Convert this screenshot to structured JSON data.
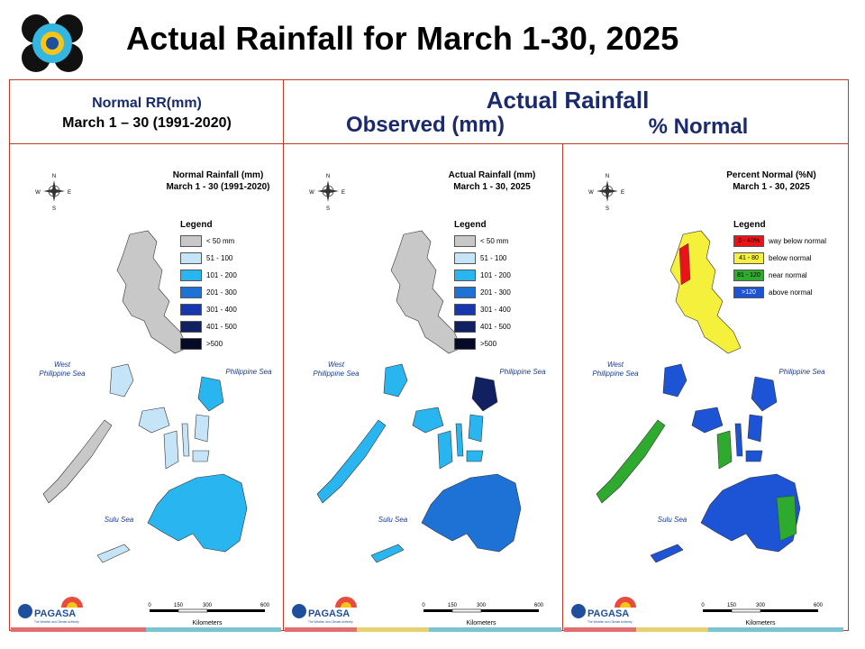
{
  "slide": {
    "title": "Actual Rainfall for March 1-30, 2025"
  },
  "headers": {
    "normal_line1": "Normal RR(mm)",
    "normal_line2": "March 1 – 30 (1991-2020)",
    "actual": "Actual Rainfall",
    "observed": "Observed (mm)",
    "percent": "% Normal"
  },
  "panels": [
    {
      "title_line1": "Normal Rainfall (mm)",
      "title_line2": "March 1 - 30 (1991-2020)",
      "legend_title": "Legend",
      "legend": [
        {
          "label": "< 50 mm",
          "color": "#c8c8c8"
        },
        {
          "label": "51 - 100",
          "color": "#c6e4f7"
        },
        {
          "label": "101 - 200",
          "color": "#29b6f0"
        },
        {
          "label": "201 - 300",
          "color": "#1e72d6"
        },
        {
          "label": "301 - 400",
          "color": "#1637b0"
        },
        {
          "label": "401 - 500",
          "color": "#112060"
        },
        {
          "label": ">500",
          "color": "#060a26"
        }
      ],
      "sea_west": "West\nPhilippine Sea",
      "sea_east": "Philippine Sea",
      "sea_sulu": "Sulu Sea",
      "dominant": "#c6e4f7"
    },
    {
      "title_line1": "Actual Rainfall (mm)",
      "title_line2": "March 1 - 30, 2025",
      "legend_title": "Legend",
      "legend": [
        {
          "label": "< 50 mm",
          "color": "#c8c8c8"
        },
        {
          "label": "51 - 100",
          "color": "#c6e4f7"
        },
        {
          "label": "101 - 200",
          "color": "#29b6f0"
        },
        {
          "label": "201 - 300",
          "color": "#1e72d6"
        },
        {
          "label": "301 - 400",
          "color": "#1637b0"
        },
        {
          "label": "401 - 500",
          "color": "#112060"
        },
        {
          "label": ">500",
          "color": "#060a26"
        }
      ],
      "sea_west": "West\nPhilippine Sea",
      "sea_east": "Philippine Sea",
      "sea_sulu": "Sulu Sea",
      "dominant": "#29b6f0"
    },
    {
      "title_line1": "Percent Normal (%N)",
      "title_line2": "March 1 - 30, 2025",
      "legend_title": "Legend",
      "legend": [
        {
          "swatch": "0 - 40%",
          "label": "way below normal",
          "color": "#e8141a",
          "text": "#000"
        },
        {
          "swatch": "41 - 80",
          "label": "below normal",
          "color": "#f5f03c",
          "text": "#000"
        },
        {
          "swatch": "81 - 120",
          "label": "near normal",
          "color": "#2eaa2e",
          "text": "#000"
        },
        {
          "swatch": ">120",
          "label": "above normal",
          "color": "#1d54d6",
          "text": "#fff"
        }
      ],
      "sea_west": "West\nPhilippine Sea",
      "sea_east": "Philippine Sea",
      "sea_sulu": "Sulu Sea",
      "dominant": "#1d54d6"
    }
  ],
  "compass": {
    "n": "N",
    "s": "S",
    "e": "E",
    "w": "W"
  },
  "scale": {
    "ticks": [
      "0",
      "150",
      "300",
      "600"
    ],
    "unit": "Kilometers"
  },
  "branding": {
    "agency": "PAGASA",
    "tagline": "The Weather and Climate Authority"
  },
  "colors": {
    "frame": "#c0392b",
    "header_text": "#1a2a6c"
  }
}
